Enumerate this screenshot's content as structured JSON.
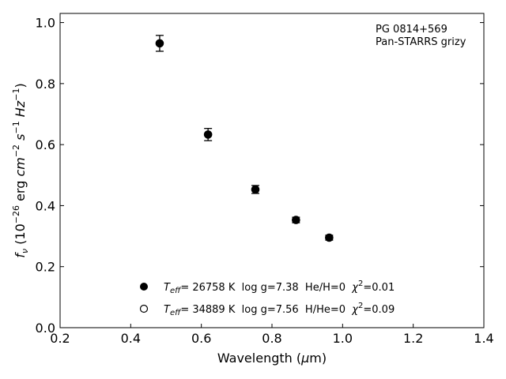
{
  "chart_data": {
    "type": "scatter",
    "title": "",
    "annotations": [
      "PG 0814+569",
      "Pan-STARRS grizy"
    ],
    "xlabel": "Wavelength (μm)",
    "ylabel": "f_ν (10^-26 erg cm^-2 s^-1 Hz^-1)",
    "xlim": [
      0.2,
      1.4
    ],
    "ylim": [
      0.0,
      1.03
    ],
    "xticks": [
      0.2,
      0.4,
      0.6,
      0.8,
      1.0,
      1.2,
      1.4
    ],
    "yticks": [
      0.0,
      0.2,
      0.4,
      0.6,
      0.8,
      1.0
    ],
    "xtick_labels": [
      "0.2",
      "0.4",
      "0.6",
      "0.8",
      "1.0",
      "1.2",
      "1.4"
    ],
    "ytick_labels": [
      "0.0",
      "0.2",
      "0.4",
      "0.6",
      "0.8",
      "1.0"
    ],
    "grid": false,
    "legend_placement": "lower-center",
    "points": {
      "x": [
        0.482,
        0.619,
        0.753,
        0.868,
        0.962
      ],
      "y": [
        0.932,
        0.633,
        0.453,
        0.353,
        0.295
      ],
      "yerr": [
        0.026,
        0.02,
        0.013,
        0.009,
        0.008
      ]
    },
    "legend": [
      {
        "marker": "filled-circle",
        "teff_label": "T",
        "teff_sub": "eff",
        "text1": "= 26758 K  log g=7.38  He/H=0  ",
        "chi_sym": "χ",
        "chi_exp": "2",
        "text2": "=0.01"
      },
      {
        "marker": "open-circle",
        "teff_label": "T",
        "teff_sub": "eff",
        "text1": "= 34889 K  log g=7.56  H/He=0  ",
        "chi_sym": "χ",
        "chi_exp": "2",
        "text2": "=0.09"
      }
    ]
  }
}
